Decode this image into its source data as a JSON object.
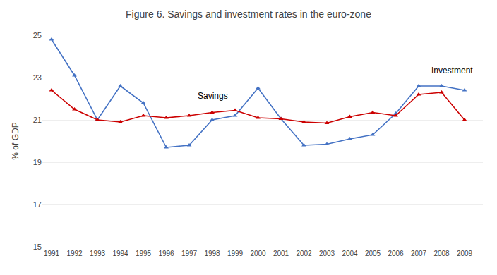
{
  "chart_data": {
    "type": "line",
    "title": "Figure 6. Savings and investment rates in the euro-zone",
    "y_label": "% of GDP",
    "x": [
      1991,
      1992,
      1993,
      1994,
      1995,
      1996,
      1997,
      1998,
      1999,
      2000,
      2001,
      2002,
      2003,
      2004,
      2005,
      2006,
      2007,
      2008,
      2009
    ],
    "series": [
      {
        "color": "#4472C4",
        "marker": "triangle-up",
        "values": [
          24.8,
          23.1,
          21.0,
          22.6,
          21.8,
          19.7,
          19.8,
          21.0,
          21.2,
          22.5,
          21.05,
          19.8,
          19.85,
          20.1,
          20.3,
          21.3,
          22.6,
          22.6,
          22.4
        ]
      },
      {
        "color": "#CC0000",
        "marker": "triangle-up",
        "values": [
          22.4,
          21.5,
          21.0,
          20.9,
          21.2,
          21.1,
          21.2,
          21.35,
          21.45,
          21.1,
          21.05,
          20.9,
          20.85,
          21.15,
          21.35,
          21.2,
          22.2,
          22.3,
          21.0
        ]
      }
    ],
    "annotations": [
      {
        "text": "Savings",
        "x": 1997.3,
        "y": 21.85
      },
      {
        "text": "Investment",
        "x": 2007.5,
        "y": 23.05
      }
    ],
    "xlim": [
      1990.6,
      2009.8
    ],
    "xticks": [
      1991,
      1992,
      1993,
      1994,
      1995,
      1996,
      1997,
      1998,
      1999,
      2000,
      2001,
      2002,
      2003,
      2004,
      2005,
      2006,
      2007,
      2008,
      2009
    ],
    "ylim": [
      15,
      25
    ],
    "yticks": [
      15,
      17,
      19,
      21,
      23,
      25
    ],
    "grid": true
  }
}
